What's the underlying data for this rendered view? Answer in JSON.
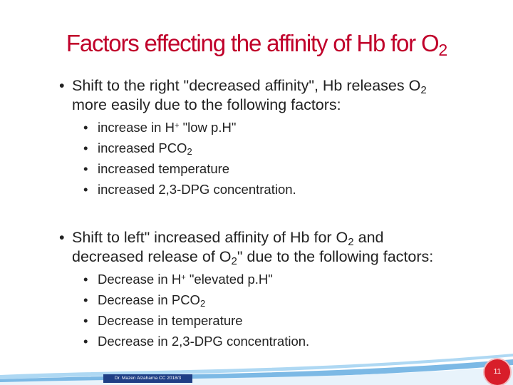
{
  "title": {
    "text": "Factors effecting the affinity of Hb for O",
    "subscript": "2"
  },
  "right_shift": {
    "line1_prefix": "Shift to the right \"decreased affinity\", Hb releases O",
    "line1_sub": "2",
    "line2": "more easily due to the following factors:",
    "items": [
      {
        "prefix": "increase in H",
        "sup": "+",
        "suffix": " \"low p.H\""
      },
      {
        "prefix": "increased PCO",
        "sub": "2"
      },
      {
        "prefix": "increased temperature"
      },
      {
        "prefix": "increased 2,3-DPG concentration."
      }
    ]
  },
  "left_shift": {
    "line1_prefix": "Shift to left\" increased affinity of Hb for O",
    "line1_sub": "2",
    "line1_suffix": " and",
    "line2_prefix": "decreased release of O",
    "line2_sub": "2",
    "line2_suffix": "\" due to the following factors:",
    "items": [
      {
        "prefix": "Decrease in H",
        "sup": "+",
        "suffix": " \"elevated p.H\""
      },
      {
        "prefix": "Decrease in PCO",
        "sub": "2"
      },
      {
        "prefix": "Decrease in temperature"
      },
      {
        "prefix": "Decrease in 2,3-DPG concentration."
      }
    ]
  },
  "bullet_glyph": "•",
  "footer": {
    "author": "Dr. Mazen Alzaharna CC 2018/3",
    "page_number": "11"
  },
  "colors": {
    "title": "#c0002a",
    "accent_wave": "#5ba8df",
    "footer_bg": "#1f3f86",
    "badge": "#d81e2a"
  }
}
